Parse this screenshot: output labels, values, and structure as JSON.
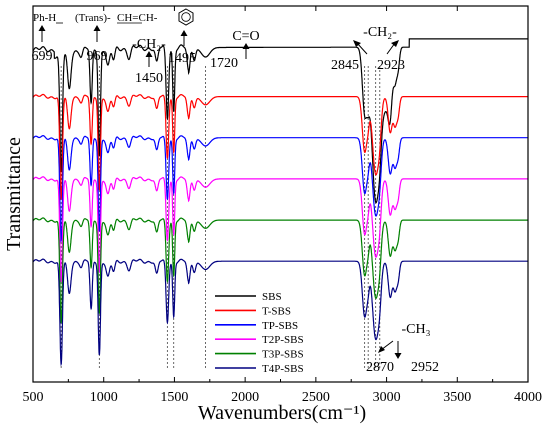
{
  "chart_data": {
    "type": "line",
    "xlabel": "Wavenumbers(cm⁻¹)",
    "ylabel": "Transmittance",
    "xlim": [
      500,
      4000
    ],
    "x_ticks": [
      "500",
      "1000",
      "1500",
      "2000",
      "2500",
      "3000",
      "3500",
      "4000"
    ],
    "x_tick_values": [
      500,
      1000,
      1500,
      2000,
      2500,
      3000,
      3500,
      4000
    ],
    "legend_position": "bottom-center",
    "series": [
      {
        "name": "SBS",
        "color": "#000000",
        "baseline": 8.4
      },
      {
        "name": "T-SBS",
        "color": "#ff0000",
        "baseline": 6.6
      },
      {
        "name": "TP-SBS",
        "color": "#0000ff",
        "baseline": 5.1
      },
      {
        "name": "T2P-SBS",
        "color": "#ff00ff",
        "baseline": 3.6
      },
      {
        "name": "T3P-SBS",
        "color": "#008000",
        "baseline": 2.1
      },
      {
        "name": "T4P-SBS",
        "color": "#000080",
        "baseline": 0.6
      }
    ],
    "peaks": [
      {
        "x": 699,
        "width": 9,
        "depth": 3.8
      },
      {
        "x": 756,
        "width": 12,
        "depth": 1.2
      },
      {
        "x": 842,
        "width": 10,
        "depth": 0.2
      },
      {
        "x": 911,
        "width": 8,
        "depth": 1.8
      },
      {
        "x": 969,
        "width": 8,
        "depth": 3.4
      },
      {
        "x": 1030,
        "width": 12,
        "depth": 0.6
      },
      {
        "x": 1070,
        "width": 10,
        "depth": 0.4
      },
      {
        "x": 1180,
        "width": 12,
        "depth": 0.3
      },
      {
        "x": 1375,
        "width": 10,
        "depth": 0.5
      },
      {
        "x": 1450,
        "width": 9,
        "depth": 2.2
      },
      {
        "x": 1495,
        "width": 7,
        "depth": 2.0
      },
      {
        "x": 1600,
        "width": 10,
        "depth": 0.8
      },
      {
        "x": 1640,
        "width": 10,
        "depth": 0.4
      },
      {
        "x": 1720,
        "width": 30,
        "depth": 0.3
      },
      {
        "x": 2845,
        "width": 16,
        "depth": 2.0
      },
      {
        "x": 2870,
        "width": 10,
        "depth": 0.6
      },
      {
        "x": 2923,
        "width": 22,
        "depth": 2.8
      },
      {
        "x": 2952,
        "width": 12,
        "depth": 0.8
      },
      {
        "x": 3026,
        "width": 14,
        "depth": 1.3
      },
      {
        "x": 3060,
        "width": 12,
        "depth": 1.0
      },
      {
        "x": 3082,
        "width": 10,
        "depth": 0.6
      }
    ],
    "reference_lines": [
      699,
      969,
      1450,
      1495,
      1720,
      2845,
      2870,
      2923,
      2952
    ],
    "annotations": [
      {
        "label": "699",
        "x": 699,
        "group": "Ph-H"
      },
      {
        "label": "969",
        "x": 969,
        "group": "(Trans)-CH=CH-"
      },
      {
        "label": "1450",
        "x": 1450,
        "group": "-CH₂-"
      },
      {
        "label": "1495",
        "x": 1495,
        "group": "benzene ring"
      },
      {
        "label": "1720",
        "x": 1720,
        "group": "C=O"
      },
      {
        "label": "2845",
        "x": 2845,
        "group": "-CH₂-"
      },
      {
        "label": "2923",
        "x": 2923,
        "group": "-CH₂-"
      },
      {
        "label": "2870",
        "x": 2870,
        "group": "-CH₃"
      },
      {
        "label": "2952",
        "x": 2952,
        "group": "-CH₃"
      }
    ]
  },
  "labels": {
    "ph_h": "Ph-H",
    "trans": "(Trans)-",
    "ch_eq_ch": "CH=CH-",
    "ch2_left": "-CH₂-",
    "carbonyl": "C=O",
    "ch2_right": "-CH₂-",
    "ch3": "-CH₃",
    "n699": "699",
    "n969": "969",
    "n1450": "1450",
    "n1495": "1495",
    "n1720": "1720",
    "n2845": "2845",
    "n2923": "2923",
    "n2870": "2870",
    "n2952": "2952"
  }
}
